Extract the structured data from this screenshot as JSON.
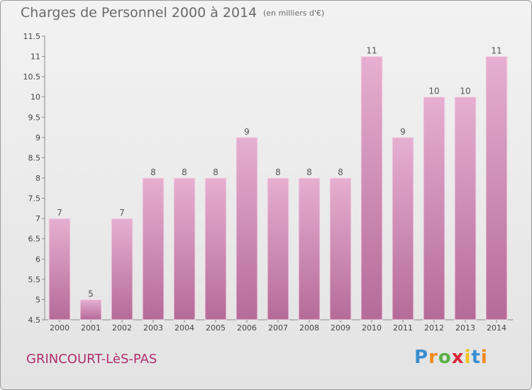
{
  "title": "Charges de Personnel 2000 à 2014",
  "unit_note": "(en milliers d'€)",
  "commune": "GRINCOURT-LèS-PAS",
  "logo": {
    "letters": [
      "P",
      "r",
      "o",
      "x",
      "i",
      "t",
      "i"
    ],
    "colors": [
      "#3a8fd0",
      "#f08a1c",
      "#5ab046",
      "#d8263a",
      "#f0c419",
      "#3a8fd0",
      "#f08a1c"
    ]
  },
  "colors": {
    "bar": "#d9a0c4",
    "commune": "#b0306e"
  },
  "chart_data": {
    "type": "bar",
    "categories": [
      "2000",
      "2001",
      "2002",
      "2003",
      "2004",
      "2005",
      "2006",
      "2007",
      "2008",
      "2009",
      "2010",
      "2011",
      "2012",
      "2013",
      "2014"
    ],
    "values": [
      7,
      5,
      7,
      8,
      8,
      8,
      9,
      8,
      8,
      8,
      11,
      9,
      10,
      10,
      11
    ],
    "data_labels": [
      "7",
      "5",
      "7",
      "8",
      "8",
      "8",
      "9",
      "8",
      "8",
      "8",
      "11",
      "9",
      "10",
      "10",
      "11"
    ],
    "ylim": [
      4.5,
      11.5
    ],
    "yticks": [
      "4.5",
      "5",
      "5.5",
      "6",
      "6.5",
      "7",
      "7.5",
      "8",
      "8.5",
      "9",
      "9.5",
      "10",
      "10.5",
      "11",
      "11.5"
    ],
    "grid": false,
    "legend": "none"
  }
}
